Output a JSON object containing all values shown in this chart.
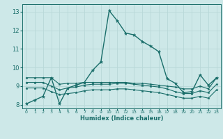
{
  "xlabel": "Humidex (Indice chaleur)",
  "xlim": [
    -0.5,
    23.5
  ],
  "ylim": [
    7.8,
    13.4
  ],
  "xticks": [
    0,
    1,
    2,
    3,
    4,
    5,
    6,
    7,
    8,
    9,
    10,
    11,
    12,
    13,
    14,
    15,
    16,
    17,
    18,
    19,
    20,
    21,
    22,
    23
  ],
  "yticks": [
    8,
    9,
    10,
    11,
    12,
    13
  ],
  "bg_color": "#cde8e8",
  "grid_color": "#b8d8d8",
  "line_color": "#1a6e6a",
  "lines": [
    {
      "x": [
        0,
        1,
        2,
        3,
        4,
        5,
        6,
        7,
        8,
        9,
        10,
        11,
        12,
        13,
        14,
        15,
        16,
        17,
        18,
        19,
        20,
        21,
        22,
        23
      ],
      "y": [
        8.05,
        8.25,
        8.45,
        9.45,
        8.05,
        8.9,
        9.05,
        9.2,
        9.85,
        10.3,
        13.05,
        12.5,
        11.85,
        11.75,
        11.4,
        11.15,
        10.85,
        9.4,
        9.15,
        8.65,
        8.7,
        9.6,
        9.05,
        9.45
      ],
      "marker": "*",
      "markersize": 3.5,
      "linewidth": 1.0
    },
    {
      "x": [
        0,
        1,
        2,
        3,
        4,
        5,
        6,
        7,
        8,
        9,
        10,
        11,
        12,
        13,
        14,
        15,
        16,
        17,
        18,
        19,
        20,
        21,
        22,
        23
      ],
      "y": [
        9.45,
        9.45,
        9.45,
        9.45,
        9.1,
        9.15,
        9.15,
        9.2,
        9.2,
        9.2,
        9.2,
        9.2,
        9.2,
        9.15,
        9.15,
        9.1,
        9.05,
        9.0,
        8.95,
        8.85,
        8.85,
        9.0,
        8.85,
        9.45
      ],
      "marker": "*",
      "markersize": 2.5,
      "linewidth": 0.8
    },
    {
      "x": [
        0,
        1,
        2,
        3,
        4,
        5,
        6,
        7,
        8,
        9,
        10,
        11,
        12,
        13,
        14,
        15,
        16,
        17,
        18,
        19,
        20,
        21,
        22,
        23
      ],
      "y": [
        9.2,
        9.2,
        9.2,
        9.0,
        8.8,
        8.9,
        8.95,
        9.05,
        9.1,
        9.1,
        9.1,
        9.15,
        9.15,
        9.1,
        9.05,
        9.0,
        8.95,
        8.85,
        8.7,
        8.6,
        8.6,
        8.75,
        8.65,
        9.1
      ],
      "marker": "*",
      "markersize": 2.5,
      "linewidth": 0.8
    },
    {
      "x": [
        0,
        1,
        2,
        3,
        4,
        5,
        6,
        7,
        8,
        9,
        10,
        11,
        12,
        13,
        14,
        15,
        16,
        17,
        18,
        19,
        20,
        21,
        22,
        23
      ],
      "y": [
        8.9,
        8.9,
        8.9,
        8.7,
        8.55,
        8.6,
        8.65,
        8.75,
        8.8,
        8.8,
        8.8,
        8.85,
        8.85,
        8.8,
        8.75,
        8.7,
        8.65,
        8.55,
        8.45,
        8.35,
        8.35,
        8.45,
        8.35,
        8.8
      ],
      "marker": "*",
      "markersize": 2.5,
      "linewidth": 0.8
    }
  ]
}
